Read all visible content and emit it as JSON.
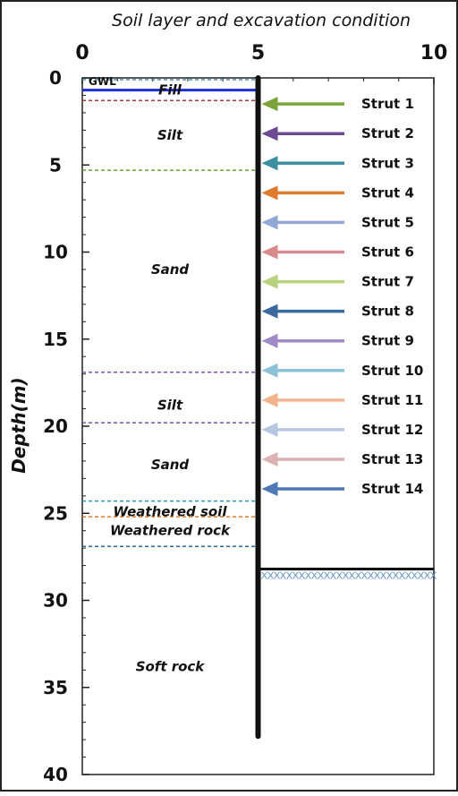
{
  "title": "Soil layer and excavation condition",
  "y_axis_label": "Depth(m)",
  "x_ticks": [
    "0",
    "5",
    "10"
  ],
  "y_ticks": [
    "0",
    "5",
    "10",
    "15",
    "20",
    "25",
    "30",
    "35",
    "40"
  ],
  "gwl_label": "GWL",
  "gwl_depth": 0.3,
  "wall": {
    "x": 5,
    "top_depth": 0,
    "bottom_depth": 37.8
  },
  "excavation_depth": 28.2,
  "fill_top_line": {
    "depth": 0.6,
    "color": "#1f2fd6"
  },
  "layers": [
    {
      "name": "Fill",
      "label_depth": 0.7
    },
    {
      "name": "Silt",
      "label_depth": 3.3
    },
    {
      "name": "Sand",
      "label_depth": 11.0
    },
    {
      "name": "Silt",
      "label_depth": 18.8
    },
    {
      "name": "Sand",
      "label_depth": 22.2
    },
    {
      "name": "Weathered soil",
      "label_depth": 24.9
    },
    {
      "name": "Weathered rock",
      "label_depth": 26.0
    },
    {
      "name": "Soft rock",
      "label_depth": 33.8
    }
  ],
  "boundaries": [
    {
      "depth": 0.0,
      "color": "#4a8fb0"
    },
    {
      "depth": 1.3,
      "color": "#b03a3a"
    },
    {
      "depth": 5.3,
      "color": "#6aa329"
    },
    {
      "depth": 16.9,
      "color": "#7b4fa8"
    },
    {
      "depth": 19.8,
      "color": "#7b4fa8"
    },
    {
      "depth": 24.3,
      "color": "#2f93b6"
    },
    {
      "depth": 25.2,
      "color": "#e07a1f"
    },
    {
      "depth": 26.9,
      "color": "#2a6e9a"
    }
  ],
  "struts": [
    {
      "label": "Strut 1",
      "depth": 1.5,
      "color": "#7aa33a"
    },
    {
      "label": "Strut 2",
      "depth": 3.2,
      "color": "#6b4a93"
    },
    {
      "label": "Strut 3",
      "depth": 4.9,
      "color": "#3a8fa0"
    },
    {
      "label": "Strut 4",
      "depth": 6.6,
      "color": "#e07a2e"
    },
    {
      "label": "Strut 5",
      "depth": 8.3,
      "color": "#92a9d8"
    },
    {
      "label": "Strut 6",
      "depth": 10.0,
      "color": "#d98b8b"
    },
    {
      "label": "Strut 7",
      "depth": 11.7,
      "color": "#b7d27e"
    },
    {
      "label": "Strut 8",
      "depth": 13.4,
      "color": "#3d6a9e"
    },
    {
      "label": "Strut 9",
      "depth": 15.1,
      "color": "#a08ac4"
    },
    {
      "label": "Strut 10",
      "depth": 16.8,
      "color": "#8cc2d6"
    },
    {
      "label": "Strut 11",
      "depth": 18.5,
      "color": "#f2b48c"
    },
    {
      "label": "Strut 12",
      "depth": 20.2,
      "color": "#b6c7e2"
    },
    {
      "label": "Strut 13",
      "depth": 21.9,
      "color": "#dcb2b2"
    },
    {
      "label": "Strut 14",
      "depth": 23.6,
      "color": "#4f79b4"
    }
  ]
}
